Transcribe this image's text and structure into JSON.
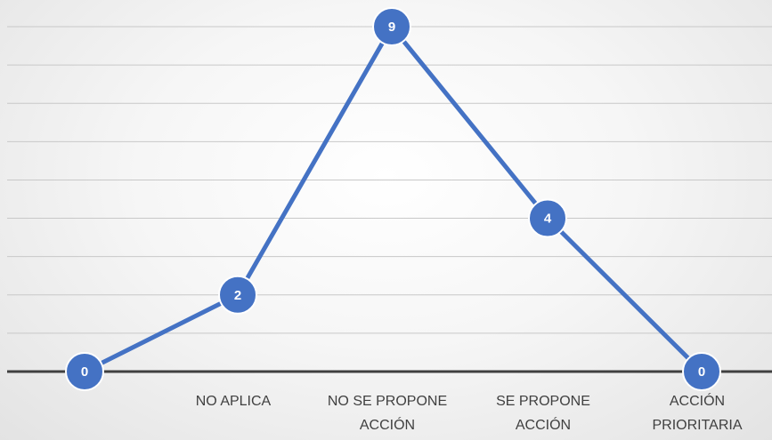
{
  "chart_data": {
    "type": "line",
    "categories": [
      "",
      "NO APLICA",
      "NO SE PROPONE ACCIÓN",
      "SE PROPONE ACCIÓN",
      "ACCIÓN PRIORITARIA"
    ],
    "category_lines": [
      [
        ""
      ],
      [
        "NO APLICA"
      ],
      [
        "NO SE PROPONE",
        "ACCIÓN"
      ],
      [
        "SE PROPONE",
        "ACCIÓN"
      ],
      [
        "ACCIÓN",
        "PRIORITARIA"
      ]
    ],
    "series": [
      {
        "values": [
          0,
          2,
          9,
          4,
          0
        ],
        "color": "#4472c4"
      }
    ],
    "data_labels": [
      "0",
      "2",
      "9",
      "4",
      "0"
    ],
    "ylim": [
      0,
      9
    ],
    "grid": true,
    "title": "",
    "xlabel": "",
    "ylabel": ""
  }
}
